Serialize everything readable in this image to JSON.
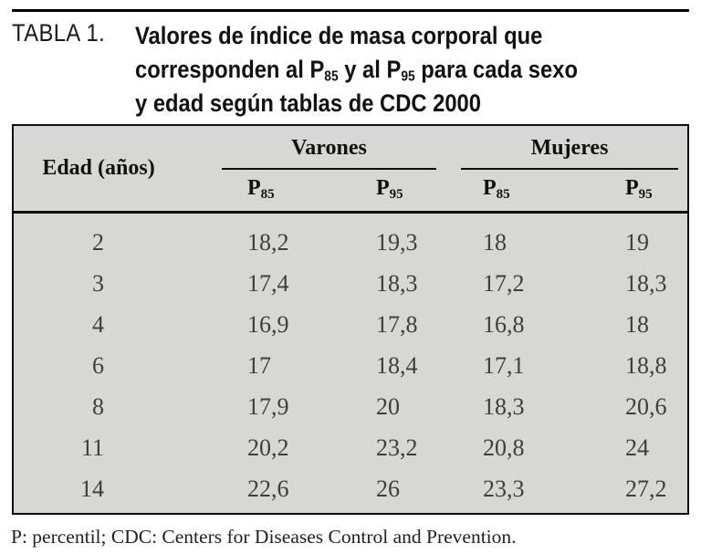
{
  "title": {
    "tag": "TABLA 1.",
    "line1": "Valores de índice de masa corporal que",
    "line2": [
      {
        "t": "corresponden al P"
      },
      {
        "sub": "85"
      },
      {
        "t": " y al P"
      },
      {
        "sub": "95"
      },
      {
        "t": " para cada sexo"
      }
    ],
    "line3": "y edad según tablas de CDC 2000"
  },
  "table": {
    "col_age_header": "Edad (años)",
    "group_varones": "Varones",
    "group_mujeres": "Mujeres",
    "p85": [
      {
        "t": "P"
      },
      {
        "sub": "85"
      }
    ],
    "p95": [
      {
        "t": "P"
      },
      {
        "sub": "95"
      }
    ],
    "rows": [
      {
        "edad": "2",
        "v85": "18,2",
        "v95": "19,3",
        "m85": "18",
        "m95": "19"
      },
      {
        "edad": "3",
        "v85": "17,4",
        "v95": "18,3",
        "m85": "17,2",
        "m95": "18,3"
      },
      {
        "edad": "4",
        "v85": "16,9",
        "v95": "17,8",
        "m85": "16,8",
        "m95": "18"
      },
      {
        "edad": "6",
        "v85": "17",
        "v95": "18,4",
        "m85": "17,1",
        "m95": "18,8"
      },
      {
        "edad": "8",
        "v85": "17,9",
        "v95": "20",
        "m85": "18,3",
        "m95": "20,6"
      },
      {
        "edad": "11",
        "v85": "20,2",
        "v95": "23,2",
        "m85": "20,8",
        "m95": "24"
      },
      {
        "edad": "14",
        "v85": "22,6",
        "v95": "26",
        "m85": "23,3",
        "m95": "27,2"
      }
    ]
  },
  "footnote": "P: percentil; CDC: Centers for Diseases Control and Prevention.",
  "colors": {
    "table_background": "#d7d7d5",
    "rule": "#0d0d0d",
    "data_text": "#3e3e3e"
  },
  "chart_data": {
    "type": "table",
    "title": "TABLA 1. Valores de índice de masa corporal que corresponden al P85 y al P95 para cada sexo y edad según tablas de CDC 2000",
    "columns": [
      "Edad (años)",
      "Varones P85",
      "Varones P95",
      "Mujeres P85",
      "Mujeres P95"
    ],
    "rows": [
      [
        2,
        18.2,
        19.3,
        18,
        19
      ],
      [
        3,
        17.4,
        18.3,
        17.2,
        18.3
      ],
      [
        4,
        16.9,
        17.8,
        16.8,
        18
      ],
      [
        6,
        17,
        18.4,
        17.1,
        18.8
      ],
      [
        8,
        17.9,
        20,
        18.3,
        20.6
      ],
      [
        11,
        20.2,
        23.2,
        20.8,
        24
      ],
      [
        14,
        22.6,
        26,
        23.3,
        27.2
      ]
    ]
  }
}
